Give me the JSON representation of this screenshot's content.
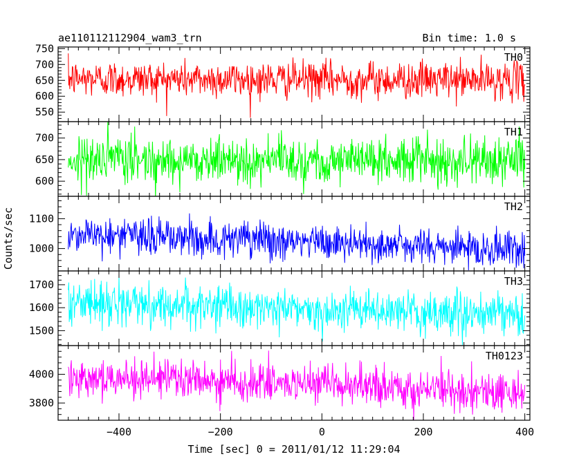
{
  "header": {
    "title": "ae110112112904_wam3_trn",
    "bin_time": "Bin time: 1.0 s"
  },
  "axes": {
    "xlabel": "Time [sec] 0 = 2011/01/12 11:29:04",
    "ylabel": "Counts/sec"
  },
  "chart_data": {
    "type": "line",
    "x_range": [
      -520,
      410
    ],
    "x_ticks": [
      -400,
      -200,
      0,
      200,
      400
    ],
    "x_minor_step": 20,
    "panels": [
      {
        "name": "TH0",
        "color": "#ff0000",
        "ylim": [
          520,
          755
        ],
        "y_ticks": [
          550,
          600,
          650,
          700,
          750
        ],
        "mean": 655,
        "noise": 32,
        "trend": [
          [
            -500,
            655
          ],
          [
            400,
            650
          ]
        ]
      },
      {
        "name": "TH1",
        "color": "#00ff00",
        "ylim": [
          565,
          738
        ],
        "y_ticks": [
          600,
          650,
          700
        ],
        "mean": 650,
        "noise": 30,
        "trend": [
          [
            -500,
            650
          ],
          [
            400,
            648
          ]
        ]
      },
      {
        "name": "TH2",
        "color": "#0000ff",
        "ylim": [
          925,
          1175
        ],
        "y_ticks": [
          1000,
          1100
        ],
        "mean": 1040,
        "noise": 35,
        "trend": [
          [
            -500,
            1050
          ],
          [
            400,
            995
          ]
        ]
      },
      {
        "name": "TH3",
        "color": "#00ffff",
        "ylim": [
          1435,
          1760
        ],
        "y_ticks": [
          1500,
          1600,
          1700
        ],
        "mean": 1610,
        "noise": 50,
        "trend": [
          [
            -500,
            1625
          ],
          [
            400,
            1565
          ]
        ]
      },
      {
        "name": "TH0123",
        "color": "#ff00ff",
        "ylim": [
          3680,
          4200
        ],
        "y_ticks": [
          3800,
          4000
        ],
        "mean": 3950,
        "noise": 75,
        "trend": [
          [
            -500,
            3990
          ],
          [
            400,
            3870
          ]
        ]
      }
    ],
    "series_x_start": -500,
    "series_x_end": 400,
    "series_step": 1
  }
}
